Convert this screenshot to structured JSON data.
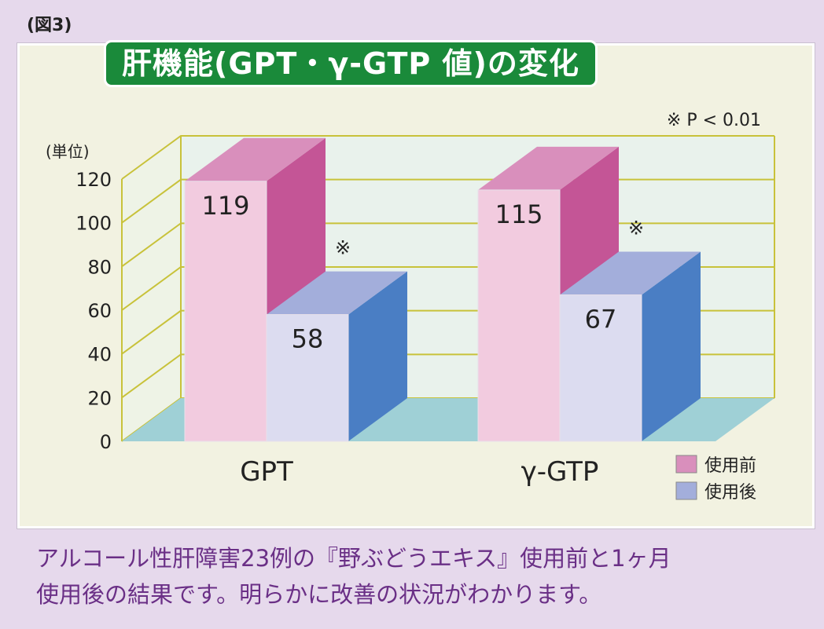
{
  "figure_label": "(図3)",
  "title": "肝機能(GPT・γ-GTP 値)の変化",
  "significance_note": "※ P < 0.01",
  "caption": {
    "line1": "アルコール性肝障害23例の『野ぶどうエキス』使用前と1ヶ月",
    "line2": "使用後の結果です。明らかに改善の状況がわかります。"
  },
  "chart_data": {
    "type": "bar",
    "categories": [
      "GPT",
      "γ-GTP"
    ],
    "series": [
      {
        "name": "使用前",
        "values": [
          119,
          115
        ],
        "color": "#f2cbdf",
        "side_color": "#c45596",
        "top_color": "#d98fbc"
      },
      {
        "name": "使用後",
        "values": [
          58,
          67
        ],
        "color": "#dcdcf0",
        "side_color": "#4a7ec4",
        "top_color": "#a3aedb"
      }
    ],
    "ylabel": "(単位)",
    "yticks": [
      "0",
      "20",
      "40",
      "60",
      "80",
      "100",
      "120"
    ],
    "ylim": [
      0,
      120
    ],
    "annotations": [
      {
        "category": "GPT",
        "series": "使用後",
        "text": "※"
      },
      {
        "category": "γ-GTP",
        "series": "使用後",
        "text": "※"
      }
    ],
    "legend": "bottom-right",
    "colors": {
      "grid": "#c8c23a",
      "floor": "#9fd0d6",
      "wall": "#e9f2ec"
    }
  }
}
